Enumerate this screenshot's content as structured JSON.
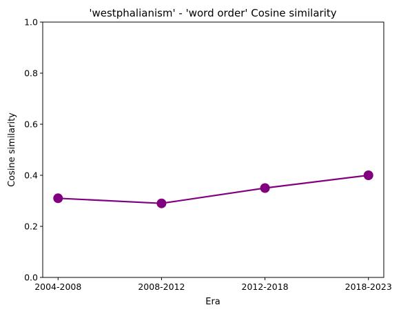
{
  "chart_data": {
    "type": "line",
    "title": "'westphalianism' - 'word order' Cosine similarity",
    "xlabel": "Era",
    "ylabel": "Cosine similarity",
    "categories": [
      "2004-2008",
      "2008-2012",
      "2012-2018",
      "2018-2023"
    ],
    "series": [
      {
        "values": [
          0.31,
          0.29,
          0.35,
          0.4
        ],
        "color": "#800080",
        "marker": "circle"
      }
    ],
    "ylim": [
      0,
      1
    ],
    "yticks": [
      0.0,
      0.2,
      0.4,
      0.6,
      0.8,
      1.0
    ],
    "ytick_labels": [
      "0.0",
      "0.2",
      "0.4",
      "0.6",
      "0.8",
      "1.0"
    ],
    "grid": false,
    "legend": "none"
  }
}
